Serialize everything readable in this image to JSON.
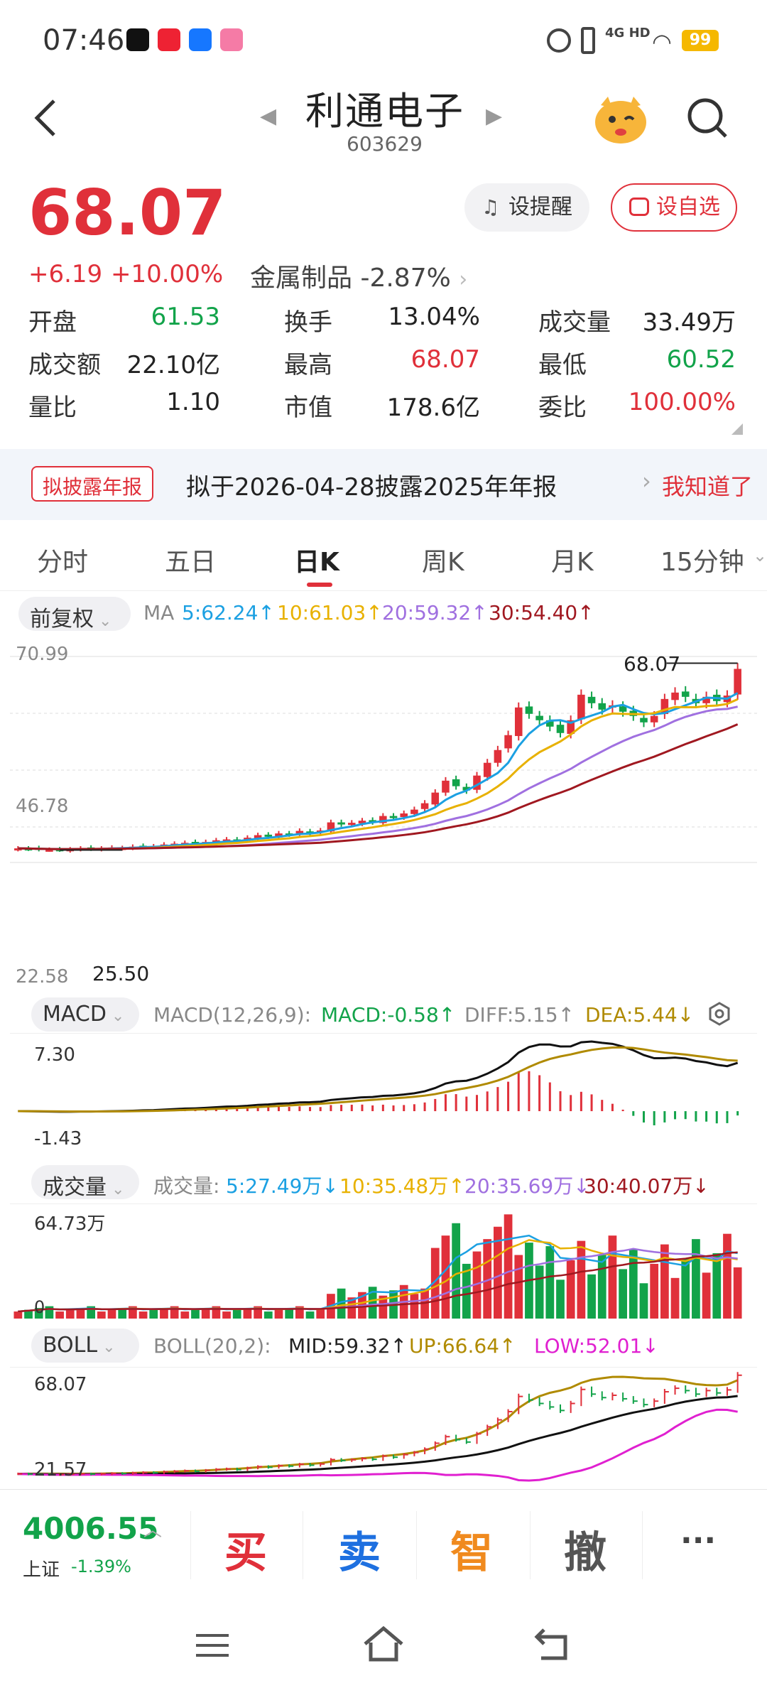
{
  "status": {
    "time": "07:46",
    "network": "4G HD",
    "battery": "99"
  },
  "header": {
    "title": "利通电子",
    "code": "603629"
  },
  "quote": {
    "price": "68.07",
    "change": "+6.19",
    "change_pct": "+10.00%",
    "sector": "金属制品",
    "sector_pct": "-2.87%",
    "alert_btn": "设提醒",
    "watch_btn": "设自选",
    "rows": [
      [
        {
          "k": "开盘",
          "v": "61.53",
          "c": "green"
        },
        {
          "k": "换手",
          "v": "13.04%",
          "c": "dark"
        },
        {
          "k": "成交量",
          "v": "33.49万",
          "c": "dark"
        }
      ],
      [
        {
          "k": "成交额",
          "v": "22.10亿",
          "c": "dark"
        },
        {
          "k": "最高",
          "v": "68.07",
          "c": "red"
        },
        {
          "k": "最低",
          "v": "60.52",
          "c": "green"
        }
      ],
      [
        {
          "k": "量比",
          "v": "1.10",
          "c": "dark"
        },
        {
          "k": "市值",
          "v": "178.6亿",
          "c": "dark"
        },
        {
          "k": "委比",
          "v": "100.00%",
          "c": "red"
        }
      ]
    ]
  },
  "notice": {
    "tag": "拟披露年报",
    "text": "拟于2026-04-28披露2025年年报",
    "ack": "我知道了"
  },
  "tabs": [
    "分时",
    "五日",
    "日K",
    "周K",
    "月K",
    "15分钟"
  ],
  "active_tab": 2,
  "main": {
    "adjust": "前复权",
    "ma_label": "MA",
    "ma5": "5:62.24↑",
    "ma10": "10:61.03↑",
    "ma20": "20:59.32↑",
    "ma30": "30:54.40↑",
    "y_top": "70.99",
    "y_mid": "46.78",
    "y_low": "22.58",
    "max_label": "68.07",
    "min_label": "25.50"
  },
  "macd": {
    "name": "MACD",
    "params": "MACD(12,26,9):",
    "macd": "MACD:-0.58↑",
    "diff": "DIFF:5.15↑",
    "dea": "DEA:5.44↓",
    "y_top": "7.30",
    "y_low": "-1.43"
  },
  "vol": {
    "name": "成交量",
    "label": "成交量:",
    "v5": "5:27.49万↓",
    "v10": "10:35.48万↑",
    "v20": "20:35.69万↓",
    "v30": "30:40.07万↓",
    "y_top": "64.73万",
    "y_low": "0"
  },
  "boll": {
    "name": "BOLL",
    "params": "BOLL(20,2):",
    "mid": "MID:59.32↑",
    "up": "UP:66.64↑",
    "low": "LOW:52.01↓",
    "y_top": "68.07",
    "y_low": "21.57"
  },
  "index": {
    "value": "4006.55",
    "name": "上证",
    "pct": "-1.39%"
  },
  "actions": {
    "buy": "买",
    "sell": "卖",
    "smart": "智",
    "cancel": "撤",
    "more": "···"
  },
  "colors": {
    "up": "#e0303a",
    "down": "#12a34a",
    "ma5": "#1ba0e2",
    "ma10": "#e8b100",
    "ma20": "#a070e0",
    "ma30": "#a01820"
  },
  "chart_data": {
    "type": "candlestick",
    "ylim": [
      22.58,
      70.99
    ],
    "last_close": 68.07,
    "closes": [
      25.9,
      25.8,
      25.7,
      25.6,
      25.6,
      25.7,
      25.9,
      25.8,
      25.9,
      26.1,
      26.0,
      26.3,
      26.5,
      26.4,
      26.8,
      27.0,
      27.2,
      27.0,
      27.4,
      27.8,
      28.0,
      27.7,
      28.4,
      29.0,
      28.7,
      29.4,
      29.2,
      30.0,
      29.6,
      30.1,
      32.0,
      31.6,
      31.9,
      32.4,
      32.1,
      33.5,
      33.0,
      34.1,
      35.0,
      36.5,
      39.0,
      41.8,
      40.5,
      39.5,
      43.0,
      46.0,
      49.0,
      52.5,
      59.0,
      57.5,
      56.0,
      54.5,
      53.0,
      56.0,
      62.0,
      60.0,
      58.5,
      59.5,
      58.0,
      57.0,
      55.5,
      57.0,
      61.0,
      62.5,
      61.5,
      60.0,
      61.5,
      60.5,
      61.8,
      68.07
    ]
  }
}
